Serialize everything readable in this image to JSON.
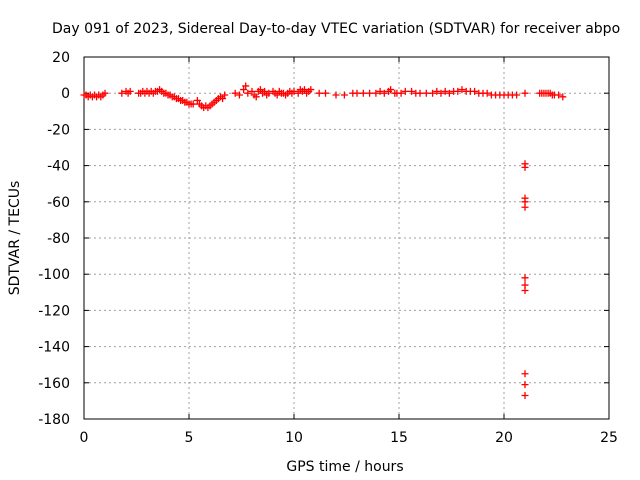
{
  "chart_data": {
    "type": "scatter",
    "title": "Day 091 of 2023, Sidereal Day-to-day VTEC variation (SDTVAR) for receiver abpo",
    "xlabel": "GPS time / hours",
    "ylabel": "SDTVAR / TECUs",
    "xlim": [
      0,
      25
    ],
    "ylim": [
      -180,
      20
    ],
    "xticks": [
      0,
      5,
      10,
      15,
      20,
      25
    ],
    "yticks": [
      20,
      0,
      -20,
      -40,
      -60,
      -80,
      -100,
      -120,
      -140,
      -160,
      -180
    ],
    "grid": true,
    "marker": "+",
    "colors": {
      "series": "#ff0000",
      "grid": "#a0a0a0",
      "axis": "#000000"
    },
    "series": [
      {
        "name": "SDTVAR",
        "points": [
          [
            0.0,
            -1
          ],
          [
            0.1,
            -1
          ],
          [
            0.2,
            -2
          ],
          [
            0.3,
            -1
          ],
          [
            0.4,
            -2
          ],
          [
            0.5,
            -1
          ],
          [
            0.6,
            -2
          ],
          [
            0.7,
            -1
          ],
          [
            0.8,
            -2
          ],
          [
            0.9,
            -1
          ],
          [
            1.0,
            0
          ],
          [
            1.8,
            0
          ],
          [
            2.0,
            1
          ],
          [
            2.1,
            0
          ],
          [
            2.2,
            1
          ],
          [
            2.6,
            0
          ],
          [
            2.7,
            0
          ],
          [
            2.8,
            1
          ],
          [
            2.9,
            0
          ],
          [
            3.0,
            1
          ],
          [
            3.1,
            0
          ],
          [
            3.2,
            1
          ],
          [
            3.3,
            0
          ],
          [
            3.4,
            1
          ],
          [
            3.5,
            1
          ],
          [
            3.6,
            2
          ],
          [
            3.7,
            1
          ],
          [
            3.8,
            0
          ],
          [
            3.9,
            0
          ],
          [
            4.0,
            -1
          ],
          [
            4.1,
            -1
          ],
          [
            4.2,
            -2
          ],
          [
            4.3,
            -2
          ],
          [
            4.4,
            -3
          ],
          [
            4.5,
            -3
          ],
          [
            4.6,
            -4
          ],
          [
            4.7,
            -4
          ],
          [
            4.8,
            -5
          ],
          [
            4.9,
            -5
          ],
          [
            5.0,
            -6
          ],
          [
            5.1,
            -6
          ],
          [
            5.2,
            -6
          ],
          [
            5.4,
            -4
          ],
          [
            5.5,
            -6
          ],
          [
            5.6,
            -7
          ],
          [
            5.7,
            -8
          ],
          [
            5.8,
            -7
          ],
          [
            5.9,
            -8
          ],
          [
            6.0,
            -7
          ],
          [
            6.1,
            -6
          ],
          [
            6.2,
            -5
          ],
          [
            6.3,
            -4
          ],
          [
            6.4,
            -3
          ],
          [
            6.5,
            -2
          ],
          [
            6.6,
            -3
          ],
          [
            6.7,
            -1
          ],
          [
            7.2,
            0
          ],
          [
            7.4,
            -1
          ],
          [
            7.6,
            2
          ],
          [
            7.7,
            4
          ],
          [
            7.8,
            0
          ],
          [
            8.0,
            1
          ],
          [
            8.1,
            -1
          ],
          [
            8.2,
            -2
          ],
          [
            8.3,
            1
          ],
          [
            8.4,
            2
          ],
          [
            8.5,
            0
          ],
          [
            8.6,
            1
          ],
          [
            8.7,
            -1
          ],
          [
            8.8,
            0
          ],
          [
            9.0,
            1
          ],
          [
            9.1,
            0
          ],
          [
            9.2,
            -1
          ],
          [
            9.3,
            1
          ],
          [
            9.4,
            0
          ],
          [
            9.5,
            0
          ],
          [
            9.6,
            -1
          ],
          [
            9.7,
            0
          ],
          [
            9.8,
            1
          ],
          [
            9.9,
            0
          ],
          [
            10.0,
            1
          ],
          [
            10.2,
            0
          ],
          [
            10.3,
            2
          ],
          [
            10.4,
            1
          ],
          [
            10.5,
            2
          ],
          [
            10.6,
            0
          ],
          [
            10.7,
            1
          ],
          [
            10.8,
            2
          ],
          [
            11.2,
            0
          ],
          [
            11.5,
            0
          ],
          [
            12.0,
            -1
          ],
          [
            12.4,
            -1
          ],
          [
            12.8,
            0
          ],
          [
            13.0,
            0
          ],
          [
            13.3,
            0
          ],
          [
            13.6,
            0
          ],
          [
            13.9,
            0
          ],
          [
            14.1,
            1
          ],
          [
            14.3,
            0
          ],
          [
            14.5,
            1
          ],
          [
            14.6,
            2
          ],
          [
            14.8,
            0
          ],
          [
            14.9,
            0
          ],
          [
            15.1,
            0
          ],
          [
            15.3,
            1
          ],
          [
            15.6,
            1
          ],
          [
            15.8,
            0
          ],
          [
            16.0,
            0
          ],
          [
            16.3,
            0
          ],
          [
            16.6,
            0
          ],
          [
            16.8,
            1
          ],
          [
            17.0,
            0
          ],
          [
            17.2,
            1
          ],
          [
            17.4,
            0
          ],
          [
            17.6,
            1
          ],
          [
            17.8,
            1
          ],
          [
            18.0,
            2
          ],
          [
            18.2,
            1
          ],
          [
            18.4,
            1
          ],
          [
            18.6,
            1
          ],
          [
            18.8,
            0
          ],
          [
            19.0,
            0
          ],
          [
            19.2,
            0
          ],
          [
            19.4,
            -1
          ],
          [
            19.6,
            -1
          ],
          [
            19.8,
            -1
          ],
          [
            20.0,
            -1
          ],
          [
            20.2,
            -1
          ],
          [
            20.4,
            -1
          ],
          [
            20.6,
            -1
          ],
          [
            21.0,
            0
          ],
          [
            21.0,
            -39
          ],
          [
            21.0,
            -41
          ],
          [
            21.0,
            -58
          ],
          [
            21.0,
            -60
          ],
          [
            21.0,
            -63
          ],
          [
            21.0,
            -102
          ],
          [
            21.0,
            -106
          ],
          [
            21.0,
            -109
          ],
          [
            21.0,
            -155
          ],
          [
            21.0,
            -161
          ],
          [
            21.0,
            -167
          ],
          [
            21.7,
            0
          ],
          [
            21.8,
            0
          ],
          [
            21.9,
            0
          ],
          [
            22.0,
            0
          ],
          [
            22.1,
            0
          ],
          [
            22.2,
            0
          ],
          [
            22.3,
            -1
          ],
          [
            22.4,
            -1
          ],
          [
            22.6,
            -1
          ],
          [
            22.8,
            -2
          ]
        ]
      }
    ]
  }
}
